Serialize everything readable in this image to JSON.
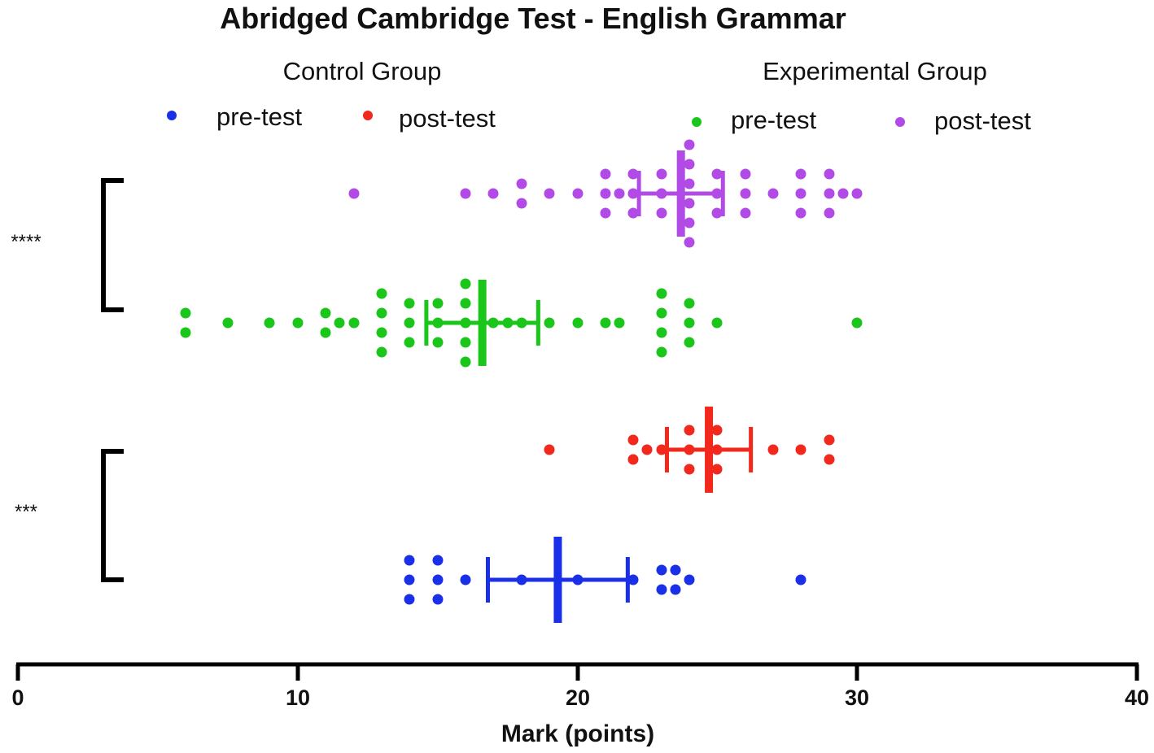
{
  "chart_data": {
    "type": "scatter",
    "title": "Abridged Cambridge Test - English Grammar",
    "xlabel": "Mark (points)",
    "xlim": [
      0,
      40
    ],
    "xticks": [
      "0",
      "10",
      "20",
      "30",
      "40"
    ],
    "xtick_values": [
      0,
      10,
      20,
      30,
      40
    ],
    "groups": [
      {
        "name": "Control Group",
        "series": [
          "pre-test",
          "post-test"
        ]
      },
      {
        "name": "Experimental Group",
        "series": [
          "pre-test",
          "post-test"
        ]
      }
    ],
    "series": [
      {
        "name": "pre-test",
        "group": "Control Group",
        "color": "#1a2fe8",
        "mean": 19.3,
        "error": [
          16.8,
          21.8
        ],
        "points": [
          14,
          14,
          14,
          15,
          15,
          15,
          16,
          18,
          20,
          22,
          23,
          23,
          23.5,
          23.5,
          24,
          28
        ]
      },
      {
        "name": "post-test",
        "group": "Control Group",
        "color": "#f2281d",
        "mean": 24.7,
        "error": [
          23.2,
          26.2
        ],
        "points": [
          19,
          22,
          22,
          22.5,
          23,
          24,
          24,
          24,
          25,
          25,
          25,
          27,
          28,
          29,
          29
        ]
      },
      {
        "name": "pre-test",
        "group": "Experimental Group",
        "color": "#19c619",
        "mean": 16.6,
        "error": [
          14.6,
          18.6
        ],
        "points": [
          6,
          6,
          7.5,
          9,
          10,
          11,
          11,
          11.5,
          12,
          13,
          13,
          13,
          13,
          14,
          14,
          14,
          15,
          15,
          15,
          16,
          16,
          16,
          16,
          16,
          17,
          17.5,
          18,
          19,
          20,
          21,
          21.5,
          23,
          23,
          23,
          23,
          24,
          24,
          24,
          25,
          30
        ]
      },
      {
        "name": "post-test",
        "group": "Experimental Group",
        "color": "#b24ae6",
        "mean": 23.7,
        "error": [
          22.2,
          25.2
        ],
        "points": [
          12,
          16,
          17,
          18,
          18,
          19,
          20,
          21,
          21,
          21,
          21.5,
          22,
          22,
          22,
          23,
          23,
          23,
          24,
          24,
          24,
          24,
          24,
          24,
          25,
          25,
          25,
          26,
          26,
          26,
          27,
          28,
          28,
          28,
          29,
          29,
          29,
          29.5,
          30
        ]
      }
    ],
    "comparisons": [
      {
        "label": "****",
        "between": [
          "Experimental Group post-test",
          "Experimental Group pre-test"
        ]
      },
      {
        "label": "***",
        "between": [
          "Control Group post-test",
          "Control Group pre-test"
        ]
      }
    ]
  }
}
